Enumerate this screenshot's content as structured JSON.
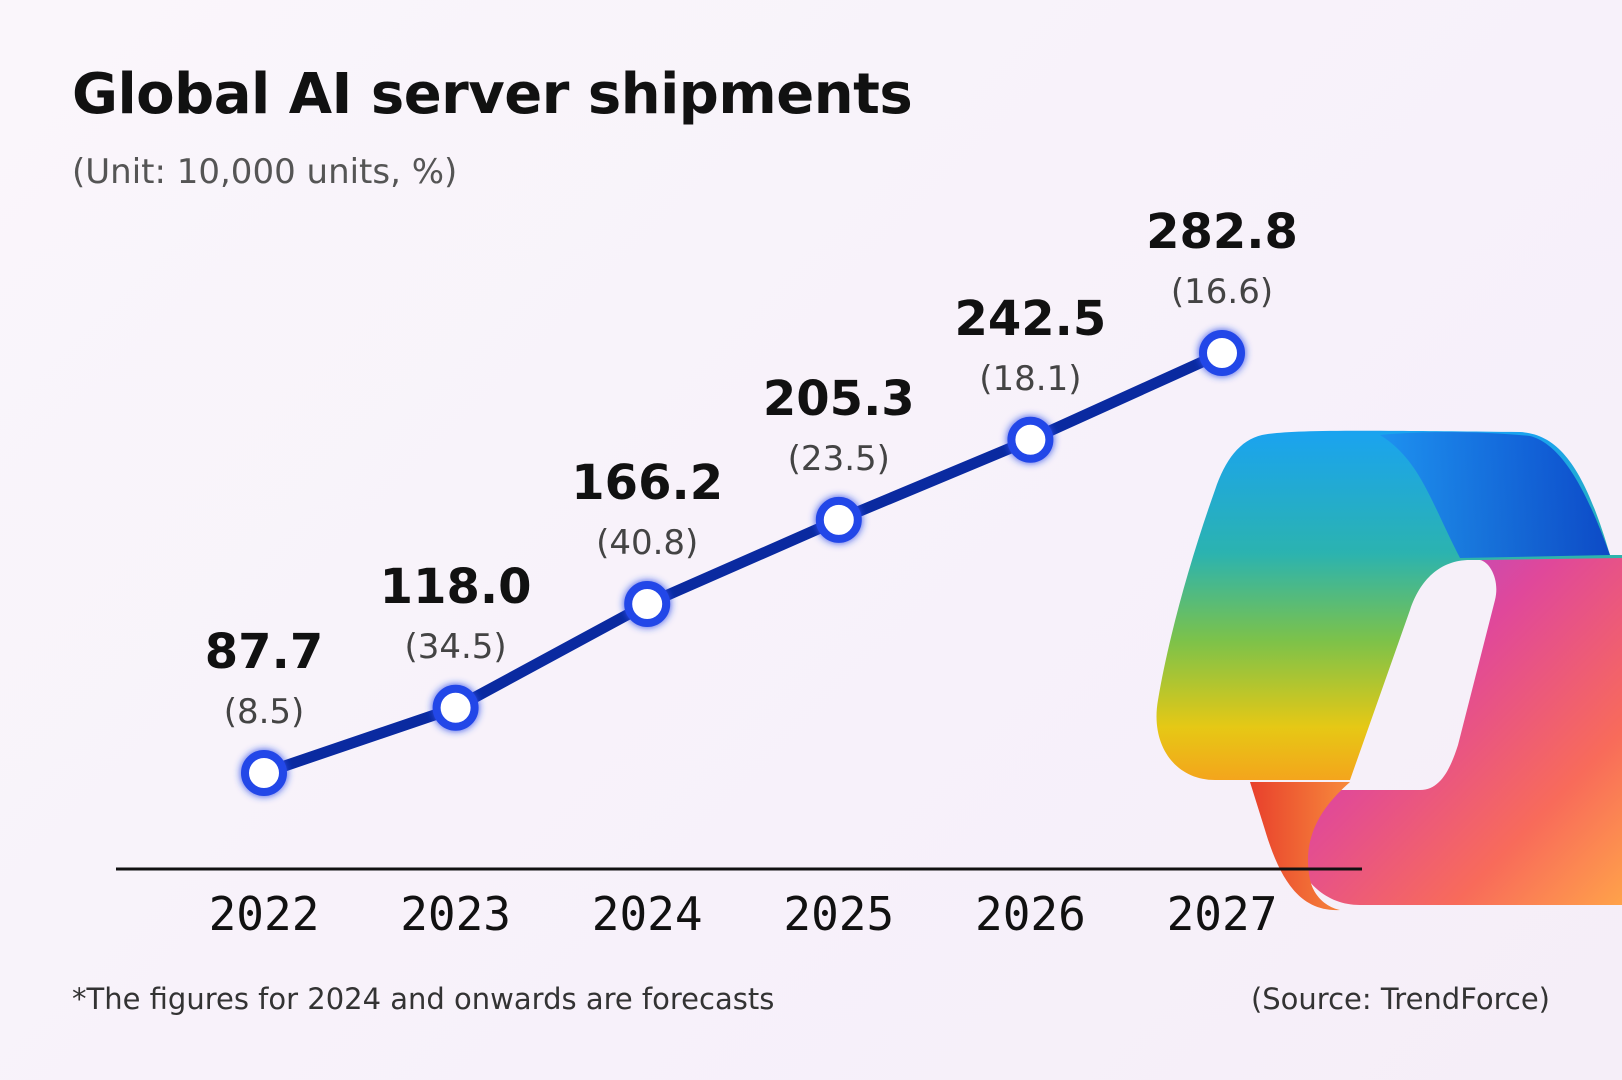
{
  "chart_data": {
    "type": "line",
    "title": "Global AI server shipments",
    "subtitle": "(Unit: 10,000 units, %)",
    "categories": [
      "2022",
      "2023",
      "2024",
      "2025",
      "2026",
      "2027"
    ],
    "series": [
      {
        "name": "Shipments",
        "values": [
          87.7,
          118.0,
          166.2,
          205.3,
          242.5,
          282.8
        ],
        "value_labels": [
          "87.7",
          "118.0",
          "166.2",
          "205.3",
          "242.5",
          "282.8"
        ],
        "growth_labels": [
          "(8.5)",
          "(34.5)",
          "(40.8)",
          "(23.5)",
          "(18.1)",
          "(16.6)"
        ]
      }
    ],
    "xlabel": "",
    "ylabel": "",
    "grid": false,
    "line_color": "#0a2aa0",
    "marker_color": "#2146e8"
  },
  "footnote": "*The figures for 2024 and onwards are forecasts",
  "source": "(Source: TrendForce)",
  "logo": {
    "name": "copilot-logo-icon"
  }
}
